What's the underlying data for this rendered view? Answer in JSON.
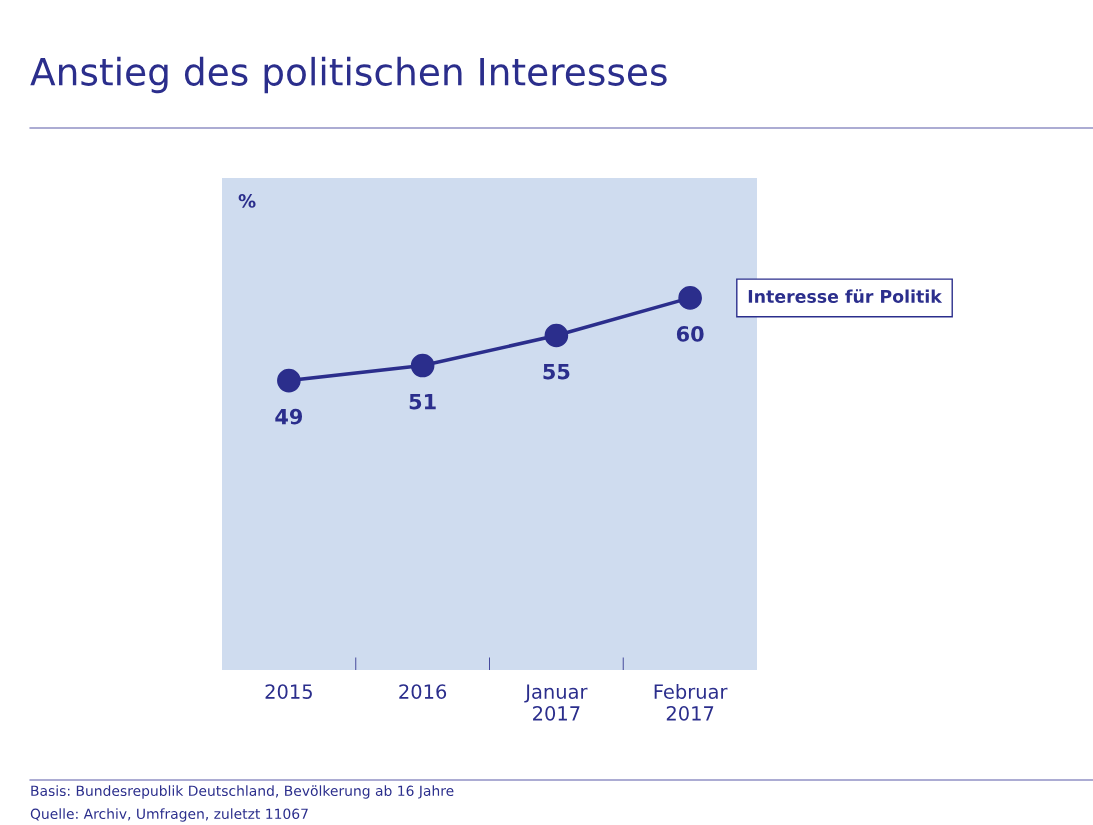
{
  "chart_data": {
    "type": "line",
    "title": "Anstieg des politischen Interesses",
    "ylabel": "%",
    "categories": [
      "2015",
      "2016",
      "Januar\n2017",
      "Februar\n2017"
    ],
    "series": [
      {
        "name": "Interesse für Politik",
        "color": "#2b2e8c",
        "values": [
          49,
          51,
          55,
          60
        ]
      }
    ],
    "data_labels": true,
    "marker": "circle",
    "line_style": "solid",
    "legend": "right",
    "grid": false,
    "tick_labels": "x",
    "annotations": [
      "Basis: Bundesrepublik Deutschland, Bevölkerung ab 16 Jahre",
      "Quelle: Archiv, Umfragen, zuletzt 11067"
    ]
  }
}
